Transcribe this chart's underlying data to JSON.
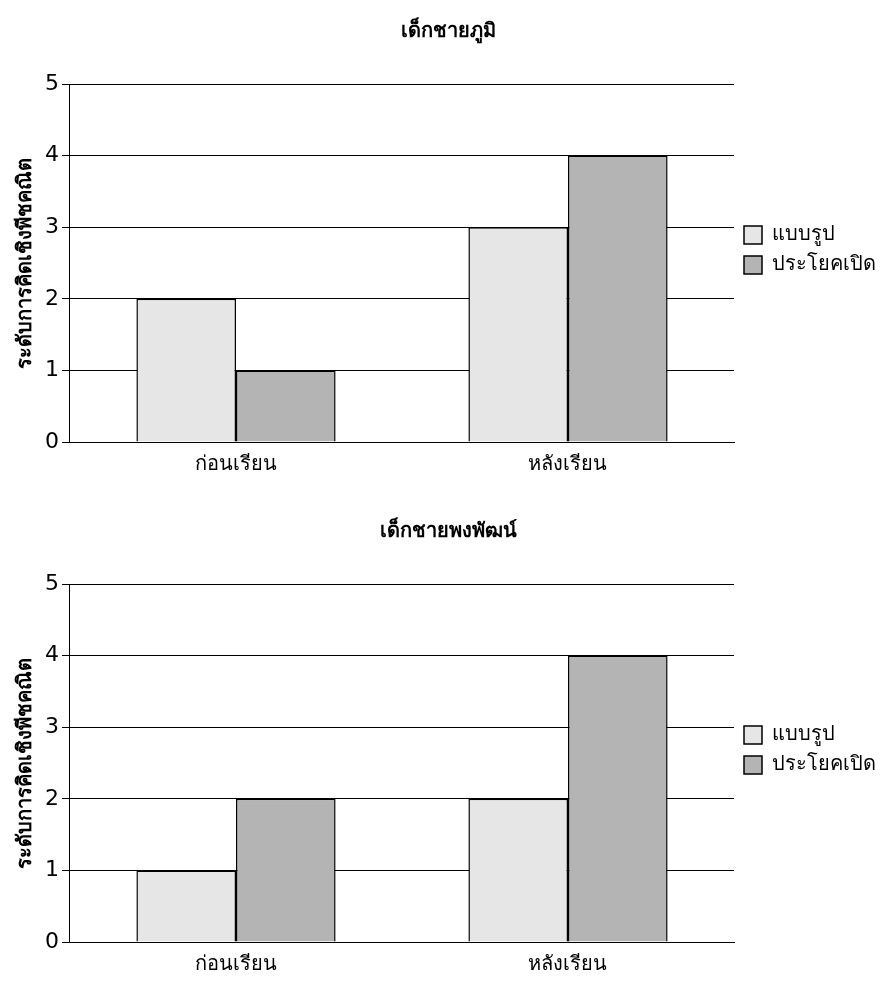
{
  "chart_data": [
    {
      "type": "bar",
      "title": "เด็กชายภูมิ",
      "ylabel": "ระดับการคิดเชิงพีชคณิต",
      "categories": [
        "ก่อนเรียน",
        "หลังเรียน"
      ],
      "series": [
        {
          "name": "แบบรูป",
          "color": "#e6e6e6",
          "values": [
            2,
            3
          ]
        },
        {
          "name": "ประโยคเปิด",
          "color": "#b4b4b4",
          "values": [
            1,
            4
          ]
        }
      ],
      "ylim": [
        0,
        5
      ],
      "yticks": [
        0,
        1,
        2,
        3,
        4,
        5
      ],
      "grid": "y",
      "legend": "right"
    },
    {
      "type": "bar",
      "title": "เด็กชายพงพัฒน์",
      "ylabel": "ระดับการคิดเชิงพีชคณิต",
      "categories": [
        "ก่อนเรียน",
        "หลังเรียน"
      ],
      "series": [
        {
          "name": "แบบรูป",
          "color": "#e6e6e6",
          "values": [
            1,
            2
          ]
        },
        {
          "name": "ประโยคเปิด",
          "color": "#b4b4b4",
          "values": [
            2,
            4
          ]
        }
      ],
      "ylim": [
        0,
        5
      ],
      "yticks": [
        0,
        1,
        2,
        3,
        4,
        5
      ],
      "grid": "y",
      "legend": "right"
    }
  ]
}
